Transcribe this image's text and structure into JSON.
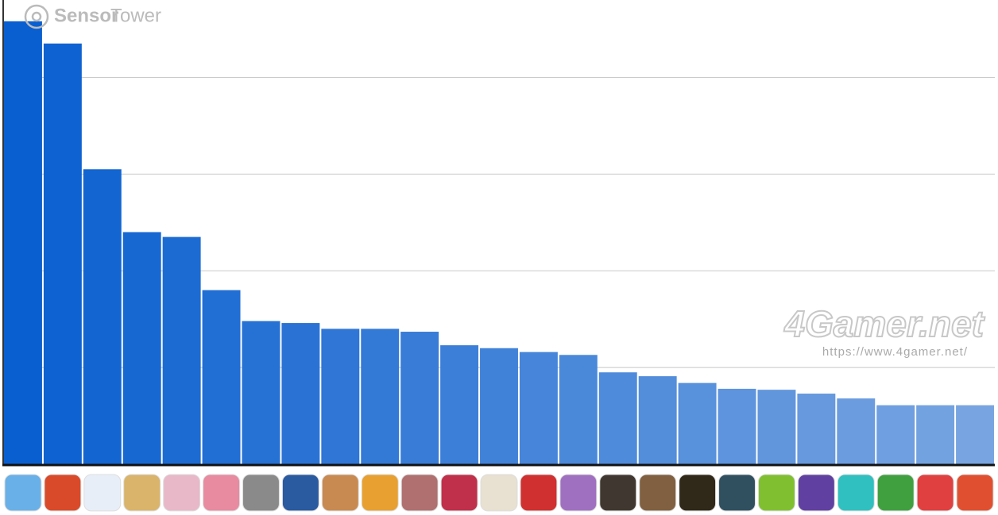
{
  "chart_data": {
    "type": "bar",
    "categories": [
      null,
      null,
      null,
      null,
      null,
      null,
      null,
      null,
      null,
      null,
      null,
      null,
      null,
      null,
      null,
      null,
      null,
      null,
      null,
      null,
      null,
      null,
      null,
      null,
      null
    ],
    "values": [
      4.58,
      4.35,
      3.05,
      2.4,
      2.35,
      1.8,
      1.48,
      1.46,
      1.4,
      1.4,
      1.37,
      1.23,
      1.2,
      1.16,
      1.13,
      0.95,
      0.91,
      0.84,
      0.78,
      0.77,
      0.73,
      0.68,
      0.61,
      0.61,
      0.61
    ],
    "colors": [
      "#0a5fd0",
      "#0f62d1",
      "#1365d1",
      "#1868d2",
      "#1c6bd3",
      "#216ed4",
      "#2671d4",
      "#2a73d5",
      "#2f76d6",
      "#3379d6",
      "#387cd7",
      "#3c7fd8",
      "#4182d9",
      "#4685d9",
      "#4a88da",
      "#4f8bdb",
      "#538edb",
      "#5891dc",
      "#5d94dd",
      "#6196dd",
      "#6699de",
      "#6a9cdf",
      "#6f9fe0",
      "#73a2e0",
      "#78a5e1"
    ],
    "ylim": [
      0,
      4.8
    ],
    "yticks": [
      1,
      2,
      3,
      4
    ],
    "grid": true,
    "watermarks": [
      "Sensor",
      "Tower",
      "4Gamer.net",
      "https://www.4gamer.net/"
    ]
  }
}
